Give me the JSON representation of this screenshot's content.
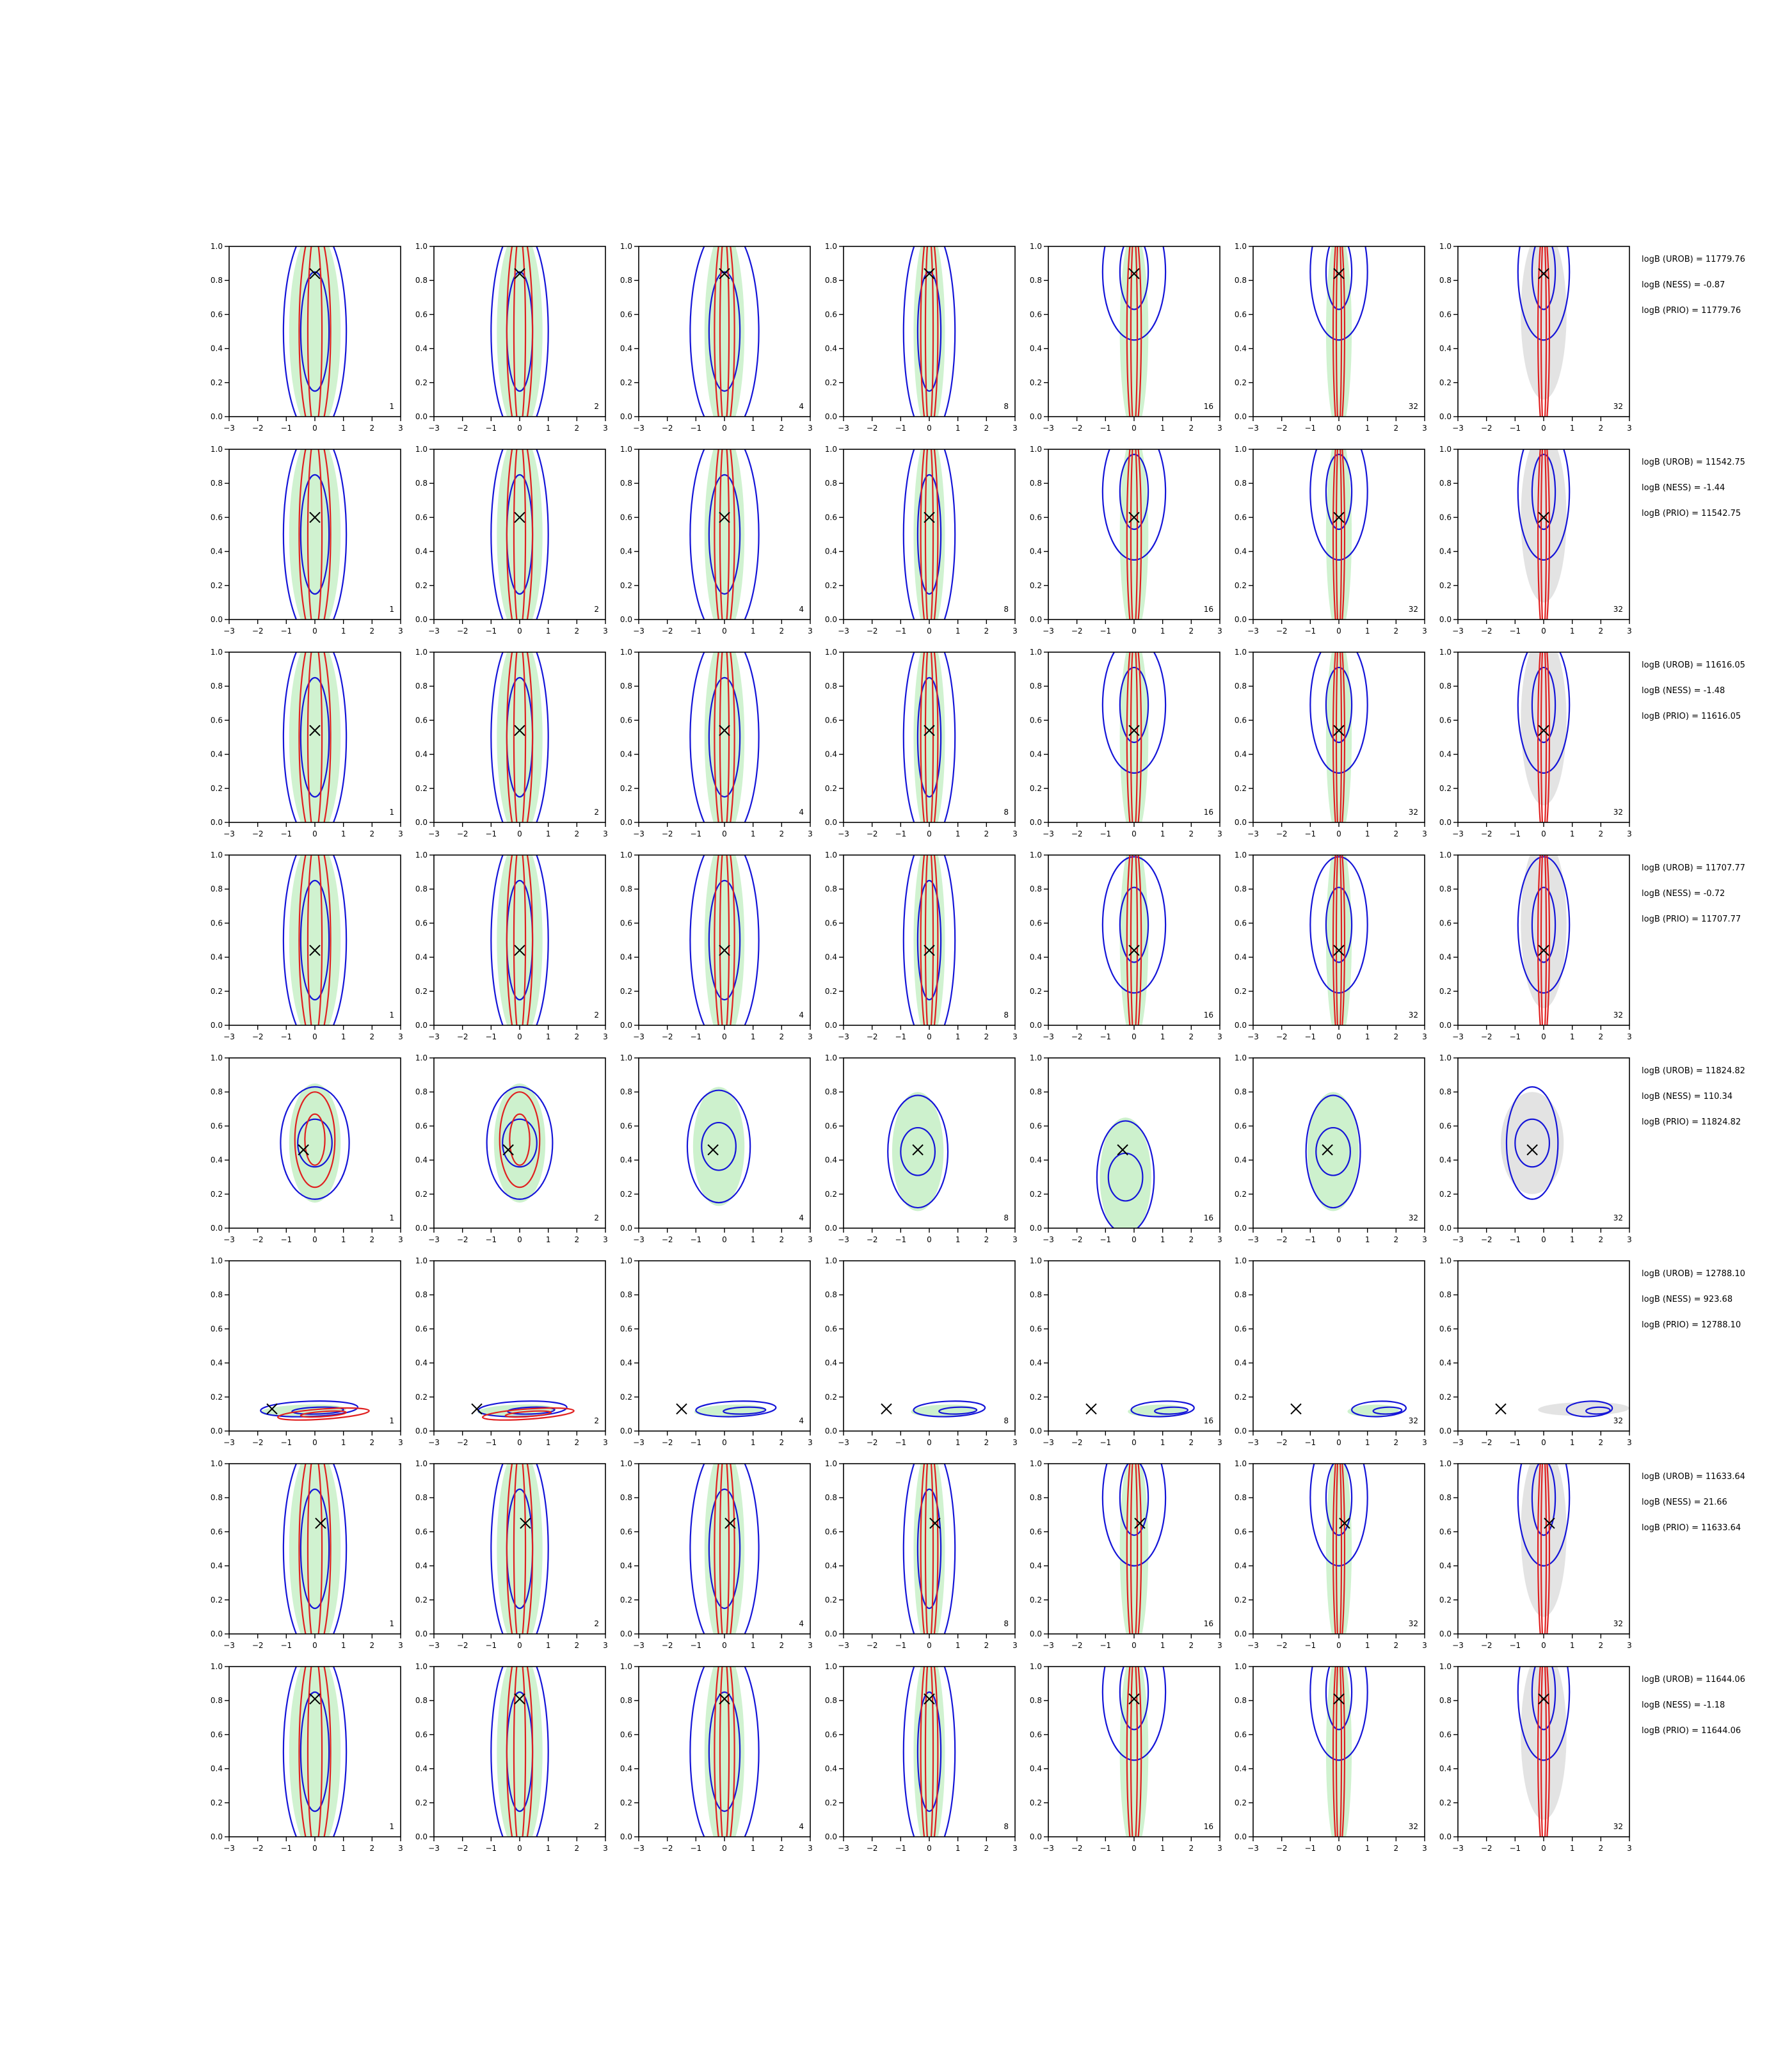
{
  "chart_data": {
    "type": "contour-grid",
    "title": "",
    "xlim": [
      -3,
      3
    ],
    "ylim": [
      0.0,
      1.0
    ],
    "x_ticks": [
      -3,
      -2,
      -1,
      0,
      1,
      2,
      3
    ],
    "y_ticks": [
      0.0,
      0.2,
      0.4,
      0.6,
      0.8,
      1.0
    ],
    "x_tick_labels": [
      "−3",
      "−2",
      "−1",
      "0",
      "1",
      "2",
      "3"
    ],
    "y_tick_labels": [
      "0.0",
      "0.2",
      "0.4",
      "0.6",
      "0.8",
      "1.0"
    ],
    "grid": false,
    "column_labels": [
      "1",
      "2",
      "4",
      "8",
      "16",
      "32",
      "32"
    ],
    "colors": {
      "fill_green": "#c8f0c8",
      "fill_gray": "#dcdcdc",
      "contour_red": "#e02020",
      "contour_blue": "#1515d8",
      "marker": "#000000"
    },
    "rows": [
      {
        "truth": {
          "x": 0.0,
          "y": 0.84
        },
        "annotations": [
          "logB (UROB) = 11779.76",
          "logB (NESS) = -0.87",
          "logB (PRIO) = 11779.76"
        ]
      },
      {
        "truth": {
          "x": 0.0,
          "y": 0.6
        },
        "annotations": [
          "logB (UROB) = 11542.75",
          "logB (NESS) = -1.44",
          "logB (PRIO) = 11542.75"
        ]
      },
      {
        "truth": {
          "x": 0.0,
          "y": 0.54
        },
        "annotations": [
          "logB (UROB) = 11616.05",
          "logB (NESS) = -1.48",
          "logB (PRIO) = 11616.05"
        ]
      },
      {
        "truth": {
          "x": 0.0,
          "y": 0.44
        },
        "annotations": [
          "logB (UROB) = 11707.77",
          "logB (NESS) = -0.72",
          "logB (PRIO) = 11707.77"
        ]
      },
      {
        "truth": {
          "x": -0.4,
          "y": 0.46
        },
        "annotations": [
          "logB (UROB) = 11824.82",
          "logB (NESS) = 110.34",
          "logB (PRIO) = 11824.82"
        ]
      },
      {
        "truth": {
          "x": -1.5,
          "y": 0.13
        },
        "annotations": [
          "logB (UROB) = 12788.10",
          "logB (NESS) = 923.68",
          "logB (PRIO) = 12788.10"
        ]
      },
      {
        "truth": {
          "x": 0.2,
          "y": 0.65
        },
        "annotations": [
          "logB (UROB) = 11633.64",
          "logB (NESS) = 21.66",
          "logB (PRIO) = 11633.64"
        ]
      },
      {
        "truth": {
          "x": 0.0,
          "y": 0.81
        },
        "annotations": [
          "logB (UROB) = 11644.06",
          "logB (NESS) = -1.18",
          "logB (PRIO) = 11644.06"
        ]
      }
    ]
  }
}
